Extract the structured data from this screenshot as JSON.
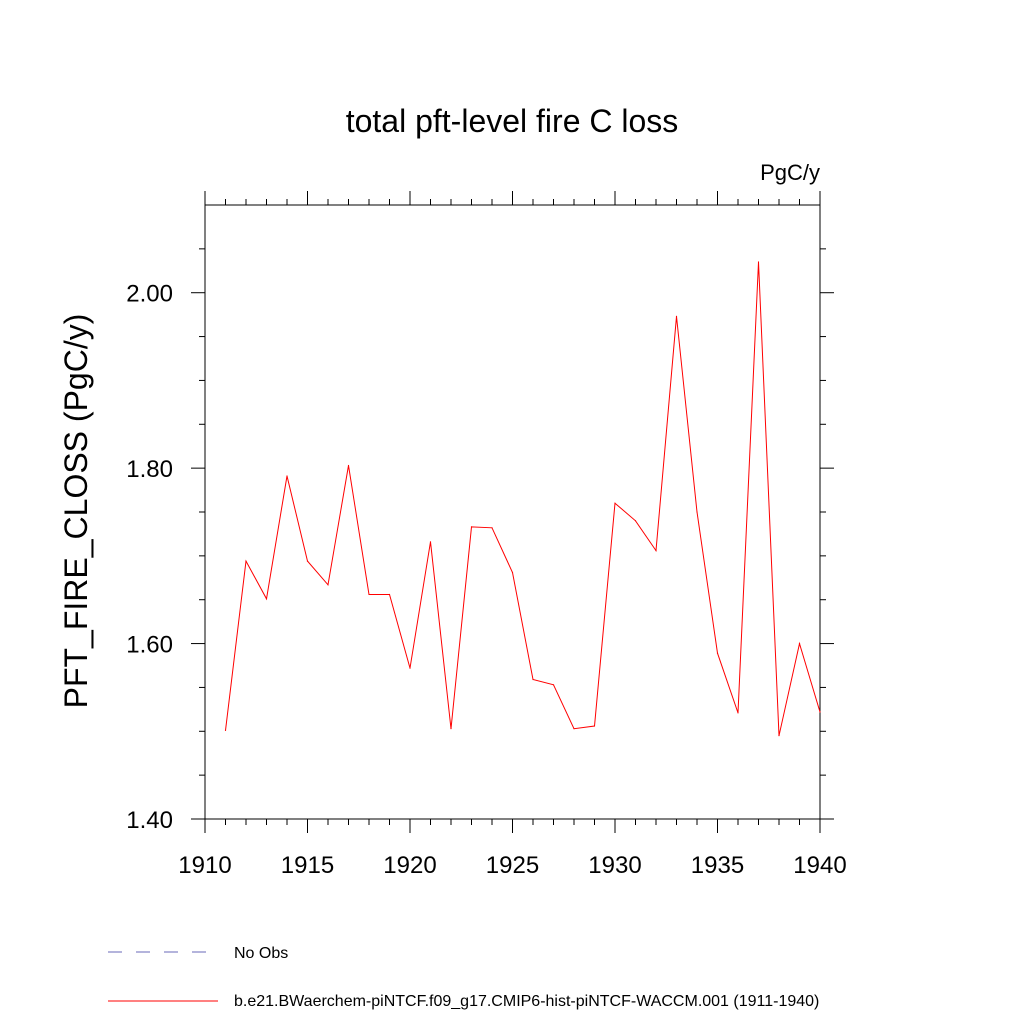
{
  "chart_data": {
    "type": "line",
    "title": "total pft-level fire C loss",
    "units": "PgC/y",
    "xlabel": "",
    "ylabel": "PFT_FIRE_CLOSS  (PgC/y)",
    "xlim": [
      1910,
      1940
    ],
    "ylim": [
      1.4,
      2.1
    ],
    "xticks": [
      1910,
      1915,
      1920,
      1925,
      1930,
      1935,
      1940
    ],
    "xtick_labels": [
      "1910",
      "1915",
      "1920",
      "1925",
      "1930",
      "1935",
      "1940"
    ],
    "yticks": [
      1.4,
      1.6,
      1.8,
      2.0
    ],
    "ytick_labels": [
      "1.40",
      "1.60",
      "1.80",
      "2.00"
    ],
    "grid": false,
    "legend_position": "bottom",
    "series": [
      {
        "name": "b.e21.BWaerchem-piNTCF.f09_g17.CMIP6-hist-piNTCF-WACCM.001 (1911-1940)",
        "color": "#ff0000",
        "line_style": "solid",
        "x": [
          1911,
          1912,
          1913,
          1914,
          1915,
          1916,
          1917,
          1918,
          1919,
          1920,
          1921,
          1922,
          1923,
          1924,
          1925,
          1926,
          1927,
          1928,
          1929,
          1930,
          1931,
          1932,
          1933,
          1934,
          1935,
          1936,
          1937,
          1938,
          1939,
          1940
        ],
        "values": [
          1.501,
          1.694,
          1.651,
          1.791,
          1.694,
          1.667,
          1.803,
          1.656,
          1.656,
          1.572,
          1.716,
          1.503,
          1.733,
          1.732,
          1.681,
          1.559,
          1.553,
          1.503,
          1.506,
          1.76,
          1.74,
          1.706,
          1.973,
          1.75,
          1.589,
          1.521,
          2.035,
          1.495,
          1.6,
          1.522
        ]
      }
    ],
    "legend": [
      {
        "label": "No Obs",
        "color": "#6a6ab8",
        "line_style": "dashed"
      },
      {
        "label": "b.e21.BWaerchem-piNTCF.f09_g17.CMIP6-hist-piNTCF-WACCM.001 (1911-1940)",
        "color": "#ff0000",
        "line_style": "solid"
      }
    ]
  }
}
